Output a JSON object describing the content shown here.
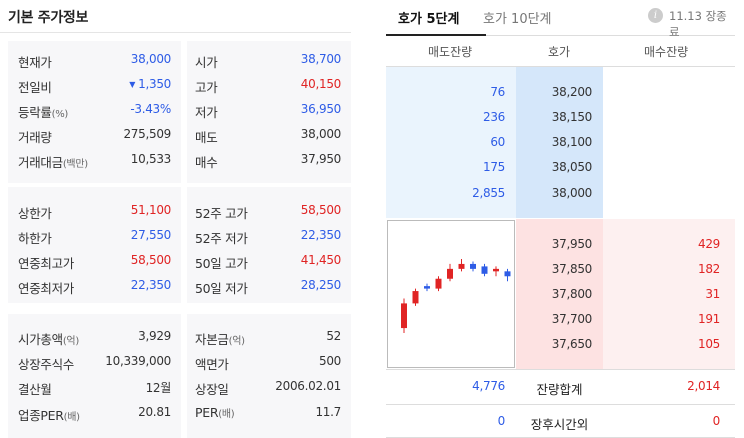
{
  "left": {
    "title": "기본 주가정보",
    "block1": [
      {
        "label": "현재가",
        "value": "38,000",
        "label2": "시가",
        "value2": "38,700"
      },
      {
        "label": "전일비",
        "arrow": "▼",
        "value": "1,350",
        "label2": "고가",
        "value2": "40,150"
      },
      {
        "label": "등락률",
        "suffix": "(%)",
        "value": "-3.43%",
        "label2": "저가",
        "value2": "36,950"
      },
      {
        "label": "거래량",
        "value": "275,509",
        "label2": "매도",
        "value2": "38,000"
      },
      {
        "label": "거래대금",
        "suffix": "(백만)",
        "value": "10,533",
        "label2": "매수",
        "value2": "37,950"
      }
    ],
    "block2": [
      {
        "label": "상한가",
        "value": "51,100",
        "label2": "52주 고가",
        "value2": "58,500"
      },
      {
        "label": "하한가",
        "value": "27,550",
        "label2": "52주 저가",
        "value2": "22,350"
      },
      {
        "label": "연중최고가",
        "value": "58,500",
        "label2": "50일 고가",
        "value2": "41,450"
      },
      {
        "label": "연중최저가",
        "value": "22,350",
        "label2": "50일 저가",
        "value2": "28,250"
      }
    ],
    "block3": [
      {
        "label": "시가총액",
        "suffix": "(억)",
        "value": "3,929",
        "label2": "자본금",
        "suffix2": "(억)",
        "value2": "52"
      },
      {
        "label": "상장주식수",
        "value": "10,339,000",
        "label2": "액면가",
        "value2": "500"
      },
      {
        "label": "결산월",
        "value": "12월",
        "label2": "상장일",
        "value2": "2006.02.01"
      },
      {
        "label": "업종PER",
        "suffix": "(배)",
        "value": "20.81",
        "label2": "PER",
        "suffix2": "(배)",
        "value2": "11.7"
      }
    ]
  },
  "right": {
    "tabs": [
      "호가 5단계",
      "호가 10단계"
    ],
    "info_icon": "i",
    "status": "11.13 장종료",
    "headers": [
      "매도잔량",
      "호가",
      "매수잔량"
    ],
    "asks": [
      {
        "qty": "76",
        "price": "38,200"
      },
      {
        "qty": "236",
        "price": "38,150"
      },
      {
        "qty": "60",
        "price": "38,100"
      },
      {
        "qty": "175",
        "price": "38,050"
      },
      {
        "qty": "2,855",
        "price": "38,000"
      }
    ],
    "bids": [
      {
        "price": "37,950",
        "qty": "429"
      },
      {
        "price": "37,850",
        "qty": "182"
      },
      {
        "price": "37,800",
        "qty": "31"
      },
      {
        "price": "37,700",
        "qty": "191"
      },
      {
        "price": "37,650",
        "qty": "105"
      }
    ],
    "total": {
      "ask": "4,776",
      "label": "잔량합계",
      "bid": "2,014"
    },
    "after_hours": {
      "ask": "0",
      "label": "장후시간외",
      "bid": "0"
    },
    "colors": {
      "up": "#e02424",
      "down": "#2e5ce6"
    },
    "candles": [
      {
        "o": 36950,
        "c": 37450,
        "h": 37550,
        "l": 36850,
        "dir": "up"
      },
      {
        "o": 37450,
        "c": 37700,
        "h": 37750,
        "l": 37400,
        "dir": "up"
      },
      {
        "o": 37800,
        "c": 37750,
        "h": 37850,
        "l": 37700,
        "dir": "down"
      },
      {
        "o": 37750,
        "c": 37950,
        "h": 38000,
        "l": 37700,
        "dir": "up"
      },
      {
        "o": 37950,
        "c": 38150,
        "h": 38250,
        "l": 37900,
        "dir": "up"
      },
      {
        "o": 38150,
        "c": 38250,
        "h": 38350,
        "l": 38100,
        "dir": "up"
      },
      {
        "o": 38250,
        "c": 38150,
        "h": 38300,
        "l": 38100,
        "dir": "down"
      },
      {
        "o": 38200,
        "c": 38050,
        "h": 38250,
        "l": 38000,
        "dir": "down"
      },
      {
        "o": 38100,
        "c": 38150,
        "h": 38200,
        "l": 38000,
        "dir": "up"
      },
      {
        "o": 38100,
        "c": 38000,
        "h": 38150,
        "l": 37900,
        "dir": "down"
      }
    ]
  }
}
